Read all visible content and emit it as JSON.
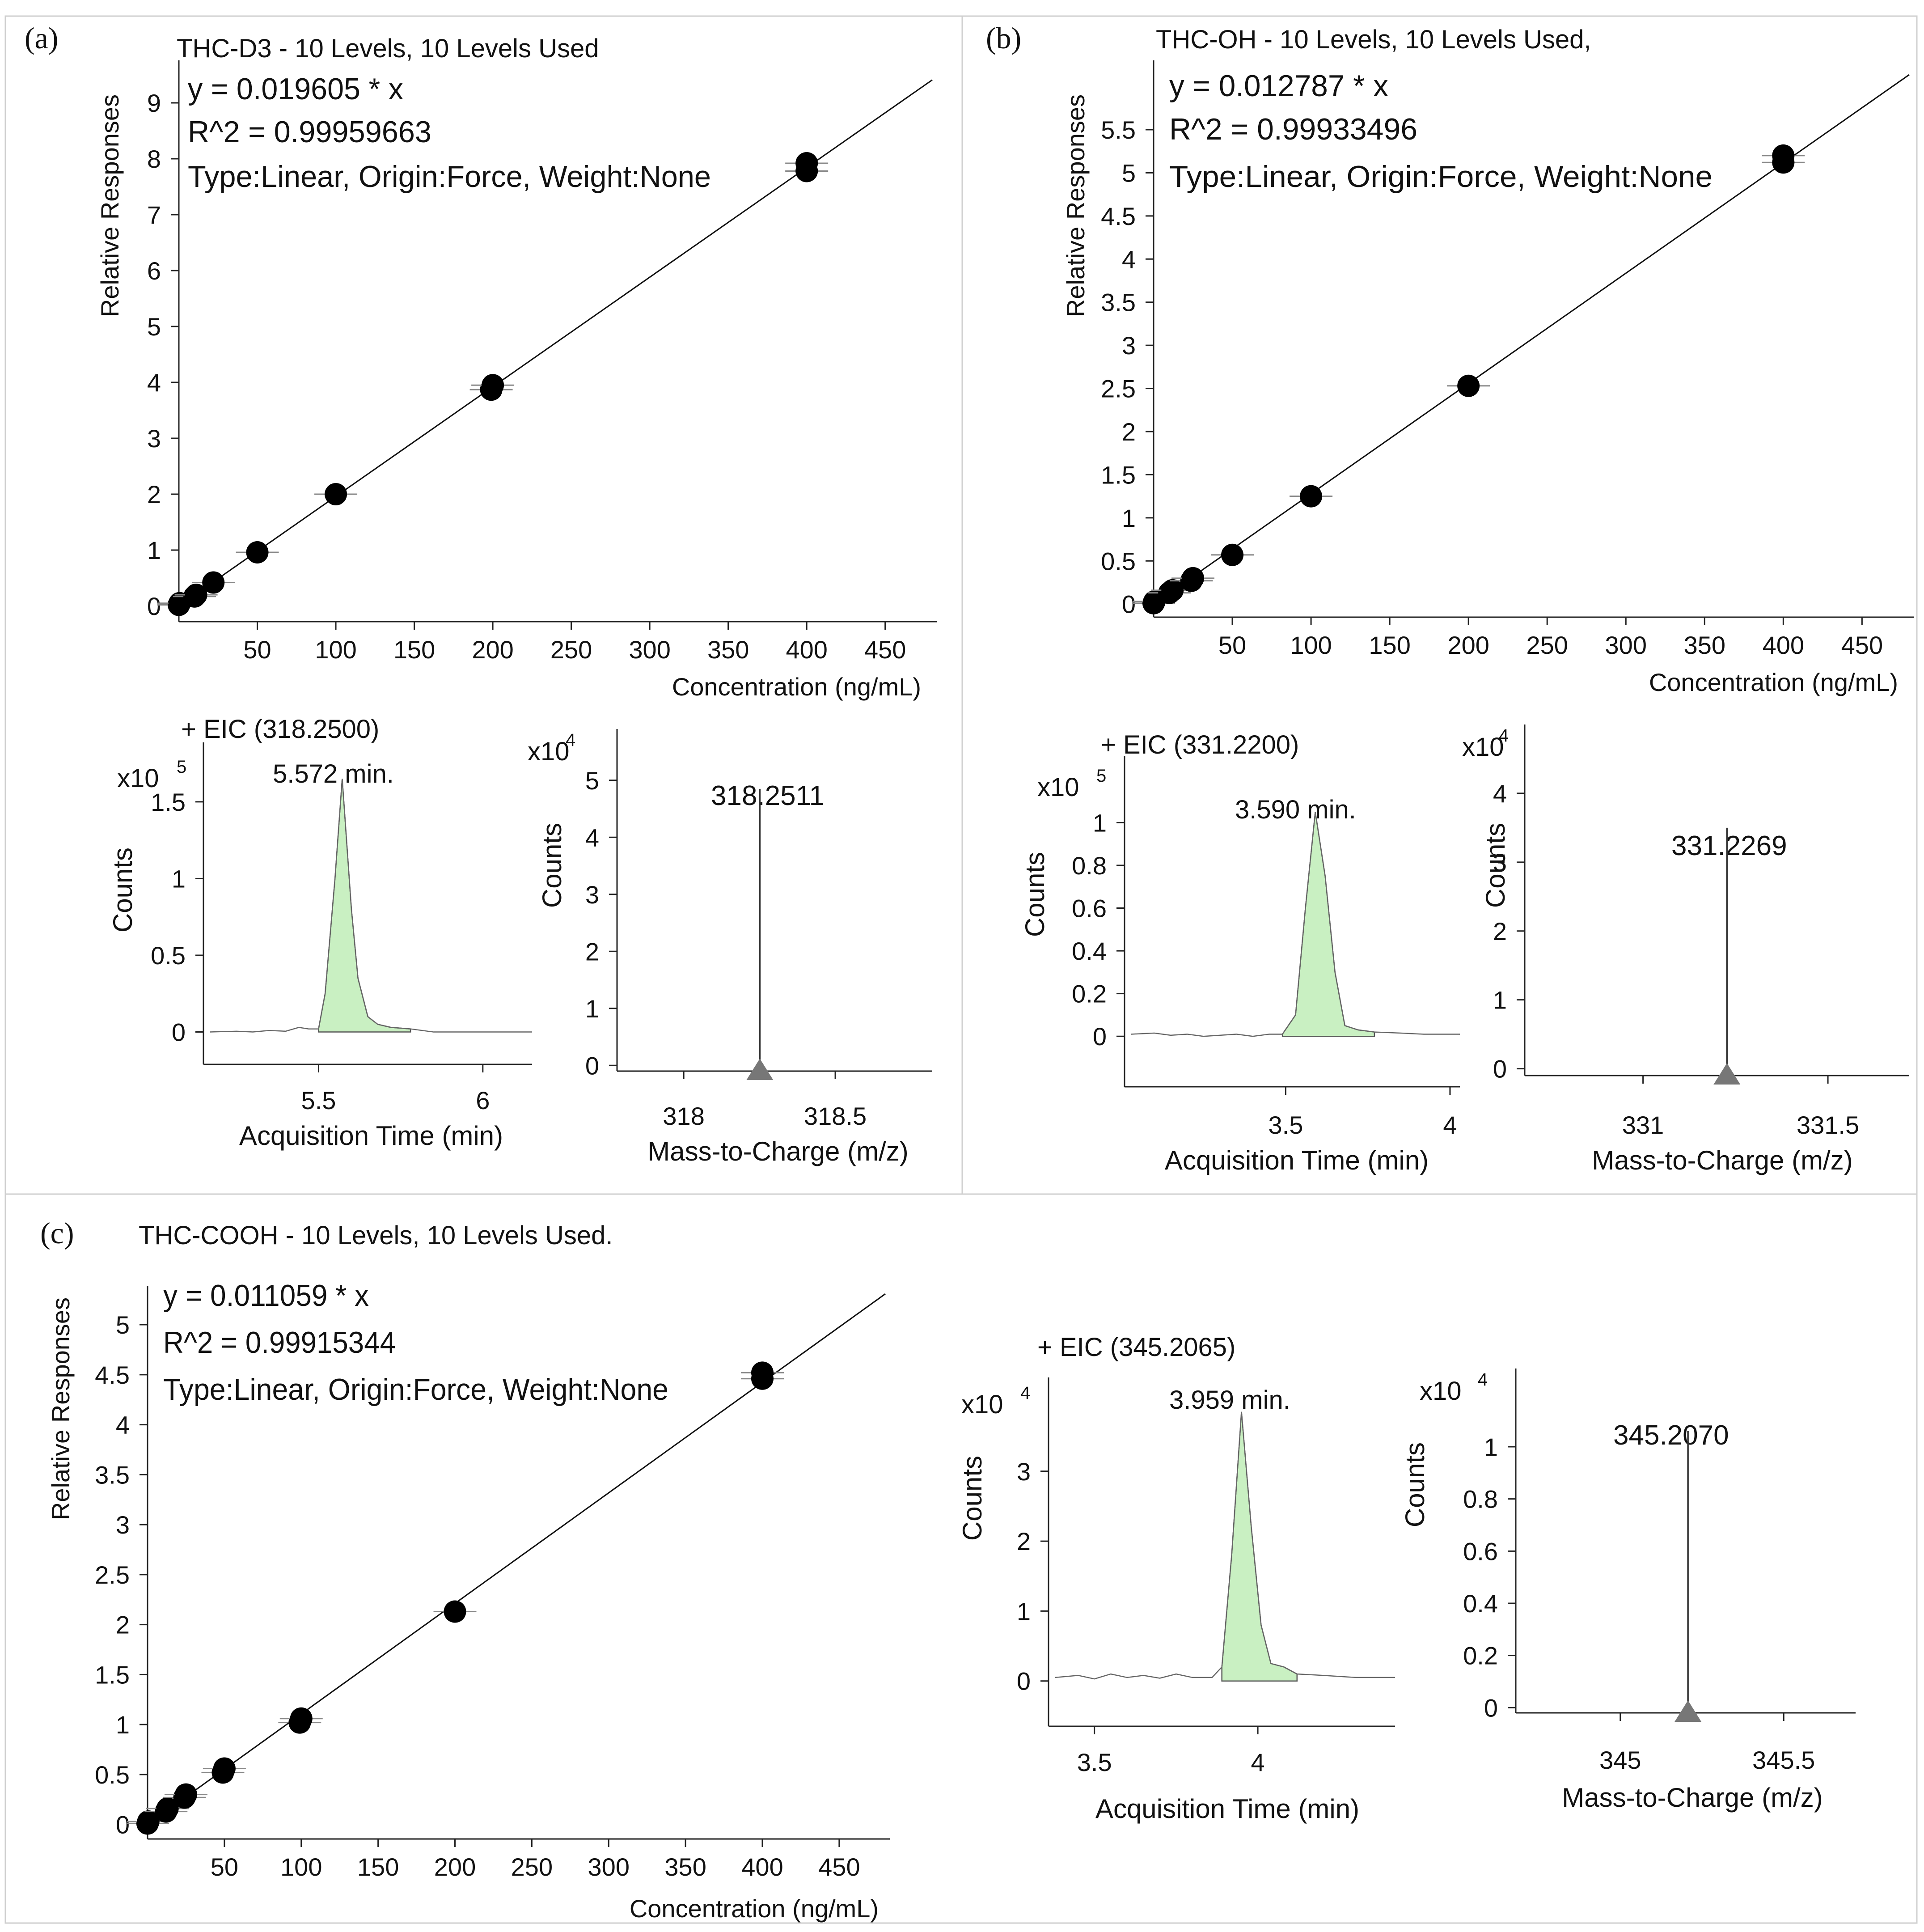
{
  "panels": {
    "a": {
      "label": "(a)",
      "title": "THC-D3 - 10 Levels, 10 Levels Used",
      "equation": "y = 0.019605 * x",
      "r2": "R^2 = 0.99959663",
      "fit_type": "Type:Linear, Origin:Force, Weight:None",
      "eic_title": "+ EIC (318.2500)",
      "eic_peak_label": "5.572 min.",
      "eic_scale": "x10",
      "eic_exp": "5",
      "ms_peak_label": "318.2511",
      "ms_scale": "x10",
      "ms_exp": "4"
    },
    "b": {
      "label": "(b)",
      "title": "THC-OH - 10 Levels, 10 Levels Used,",
      "equation": "y = 0.012787 * x",
      "r2": "R^2 = 0.99933496",
      "fit_type": "Type:Linear, Origin:Force, Weight:None",
      "eic_title": "+ EIC (331.2200)",
      "eic_peak_label": "3.590 min.",
      "eic_scale": "x10",
      "eic_exp": "5",
      "ms_peak_label": "331.2269",
      "ms_scale": "x10",
      "ms_exp": "4"
    },
    "c": {
      "label": "(c)",
      "title": "THC-COOH - 10 Levels, 10 Levels Used.",
      "equation": "y = 0.011059 * x",
      "r2": "R^2 = 0.99915344",
      "fit_type": "Type:Linear, Origin:Force, Weight:None",
      "eic_title": "+ EIC (345.2065)",
      "eic_peak_label": "3.959 min.",
      "eic_scale": "x10",
      "eic_exp": "4",
      "ms_peak_label": "345.2070",
      "ms_scale": "x10",
      "ms_exp": "4"
    }
  },
  "chart_data": [
    {
      "id": "a-cal",
      "type": "scatter",
      "title": "THC-D3 - 10 Levels, 10 Levels Used",
      "xlabel": "Concentration (ng/mL)",
      "ylabel": "Relative Responses",
      "xlim": [
        0,
        480
      ],
      "ylim": [
        -0.2,
        9.6
      ],
      "xticks": [
        50,
        100,
        150,
        200,
        250,
        300,
        350,
        400,
        450
      ],
      "yticks": [
        0,
        1,
        2,
        3,
        4,
        5,
        6,
        7,
        8,
        9
      ],
      "slope": 0.019605,
      "x": [
        0,
        0.5,
        10,
        11,
        22,
        50,
        100,
        199,
        200,
        400,
        400
      ],
      "y": [
        0.02,
        0.05,
        0.17,
        0.2,
        0.42,
        0.96,
        2.0,
        3.87,
        3.95,
        7.78,
        7.92
      ]
    },
    {
      "id": "a-eic",
      "type": "area",
      "title": "+ EIC (318.2500)",
      "xlabel": "Acquisition Time (min)",
      "ylabel": "Counts",
      "xlim": [
        5.17,
        6.15
      ],
      "ylim": [
        -0.08,
        1.8
      ],
      "xticks": [
        5.5,
        6
      ],
      "yticks": [
        0,
        0.5,
        1,
        1.5
      ],
      "x": [
        5.17,
        5.25,
        5.3,
        5.35,
        5.4,
        5.44,
        5.47,
        5.5,
        5.52,
        5.55,
        5.572,
        5.6,
        5.62,
        5.65,
        5.68,
        5.72,
        5.78,
        5.85,
        5.95,
        6.05,
        6.15
      ],
      "y": [
        0.0,
        0.005,
        0.0,
        0.01,
        0.005,
        0.03,
        0.02,
        0.02,
        0.25,
        1.0,
        1.65,
        0.8,
        0.35,
        0.1,
        0.05,
        0.03,
        0.02,
        0.0,
        0.0,
        0.0,
        0.0
      ],
      "fill_range": [
        5.49,
        5.82
      ]
    },
    {
      "id": "a-ms",
      "type": "bar",
      "title": "318.2511",
      "xlabel": "Mass-to-Charge (m/z)",
      "ylabel": "Counts",
      "xlim": [
        317.78,
        318.82
      ],
      "ylim": [
        -0.1,
        5.9
      ],
      "xticks": [
        318,
        318.5
      ],
      "yticks": [
        0,
        1,
        2,
        3,
        4,
        5
      ],
      "x": [
        318.2511
      ],
      "y": [
        4.85
      ]
    },
    {
      "id": "b-cal",
      "type": "scatter",
      "title": "THC-OH - 10 Levels, 10 Levels Used,",
      "xlabel": "Concentration (ng/mL)",
      "ylabel": "Relative Responses",
      "xlim": [
        0,
        480
      ],
      "ylim": [
        -0.1,
        6.2
      ],
      "xticks": [
        50,
        100,
        150,
        200,
        250,
        300,
        350,
        400,
        450
      ],
      "yticks": [
        0,
        0.5,
        1,
        1.5,
        2,
        2.5,
        3,
        3.5,
        4,
        4.5,
        5,
        5.5
      ],
      "slope": 0.012787,
      "x": [
        0,
        0.5,
        10,
        12,
        24,
        25,
        50,
        100,
        200,
        400,
        400
      ],
      "y": [
        0.01,
        0.03,
        0.13,
        0.16,
        0.27,
        0.3,
        0.57,
        1.25,
        2.53,
        5.12,
        5.2
      ]
    },
    {
      "id": "b-eic",
      "type": "area",
      "title": "+ EIC (331.2200)",
      "xlabel": "Acquisition Time (min)",
      "ylabel": "Counts",
      "xlim": [
        3.03,
        4.03
      ],
      "ylim": [
        -0.1,
        1.25
      ],
      "xticks": [
        3.5,
        4
      ],
      "yticks": [
        0,
        0.2,
        0.4,
        0.6,
        0.8,
        1
      ],
      "x": [
        3.03,
        3.1,
        3.15,
        3.2,
        3.25,
        3.3,
        3.35,
        3.4,
        3.45,
        3.49,
        3.53,
        3.56,
        3.59,
        3.62,
        3.65,
        3.68,
        3.72,
        3.77,
        3.85,
        3.92,
        4.03
      ],
      "y": [
        0.01,
        0.015,
        0.005,
        0.01,
        0.0,
        0.005,
        0.01,
        0.0,
        0.01,
        0.01,
        0.1,
        0.6,
        1.05,
        0.75,
        0.3,
        0.05,
        0.03,
        0.02,
        0.015,
        0.01,
        0.01
      ],
      "fill_range": [
        3.48,
        3.78
      ]
    },
    {
      "id": "b-ms",
      "type": "bar",
      "title": "331.2269",
      "xlabel": "Mass-to-Charge (m/z)",
      "ylabel": "Counts",
      "xlim": [
        330.68,
        331.72
      ],
      "ylim": [
        -0.1,
        5.0
      ],
      "xticks": [
        331,
        331.5
      ],
      "yticks": [
        0,
        1,
        2,
        3,
        4
      ],
      "x": [
        331.2269
      ],
      "y": [
        3.5
      ]
    },
    {
      "id": "c-cal",
      "type": "scatter",
      "title": "THC-COOH - 10 Levels, 10 Levels Used.",
      "xlabel": "Concentration (ng/mL)",
      "ylabel": "Relative Responses",
      "xlim": [
        0,
        480
      ],
      "ylim": [
        -0.1,
        5.3
      ],
      "xticks": [
        50,
        100,
        150,
        200,
        250,
        300,
        350,
        400,
        450
      ],
      "yticks": [
        0,
        0.5,
        1,
        1.5,
        2,
        2.5,
        3,
        3.5,
        4,
        4.5,
        5
      ],
      "slope": 0.011059,
      "x": [
        0,
        0.5,
        12,
        13,
        24,
        25,
        49,
        50,
        99,
        100,
        200,
        400,
        400
      ],
      "y": [
        0.01,
        0.03,
        0.13,
        0.16,
        0.27,
        0.3,
        0.52,
        0.56,
        1.02,
        1.06,
        2.13,
        4.46,
        4.52
      ]
    },
    {
      "id": "c-eic",
      "type": "area",
      "title": "+ EIC (345.2065)",
      "xlabel": "Acquisition Time (min)",
      "ylabel": "Counts",
      "xlim": [
        3.38,
        4.42
      ],
      "ylim": [
        -0.2,
        4.15
      ],
      "xticks": [
        3.5,
        4
      ],
      "yticks": [
        0,
        1,
        2,
        3
      ],
      "x": [
        3.38,
        3.45,
        3.5,
        3.55,
        3.6,
        3.65,
        3.7,
        3.75,
        3.8,
        3.86,
        3.89,
        3.92,
        3.95,
        3.98,
        4.01,
        4.04,
        4.08,
        4.12,
        4.2,
        4.3,
        4.42
      ],
      "y": [
        0.05,
        0.08,
        0.03,
        0.1,
        0.05,
        0.08,
        0.04,
        0.1,
        0.05,
        0.05,
        0.2,
        1.8,
        3.85,
        2.2,
        0.8,
        0.25,
        0.2,
        0.1,
        0.08,
        0.05,
        0.05
      ],
      "fill_range": [
        3.87,
        4.13
      ]
    },
    {
      "id": "c-ms",
      "type": "bar",
      "title": "345.2070",
      "xlabel": "Mass-to-Charge (m/z)",
      "ylabel": "Counts",
      "xlim": [
        344.68,
        345.72
      ],
      "ylim": [
        -0.02,
        1.3
      ],
      "xticks": [
        345,
        345.5
      ],
      "yticks": [
        0,
        0.2,
        0.4,
        0.6,
        0.8,
        1
      ],
      "x": [
        345.207
      ],
      "y": [
        1.06
      ]
    }
  ]
}
